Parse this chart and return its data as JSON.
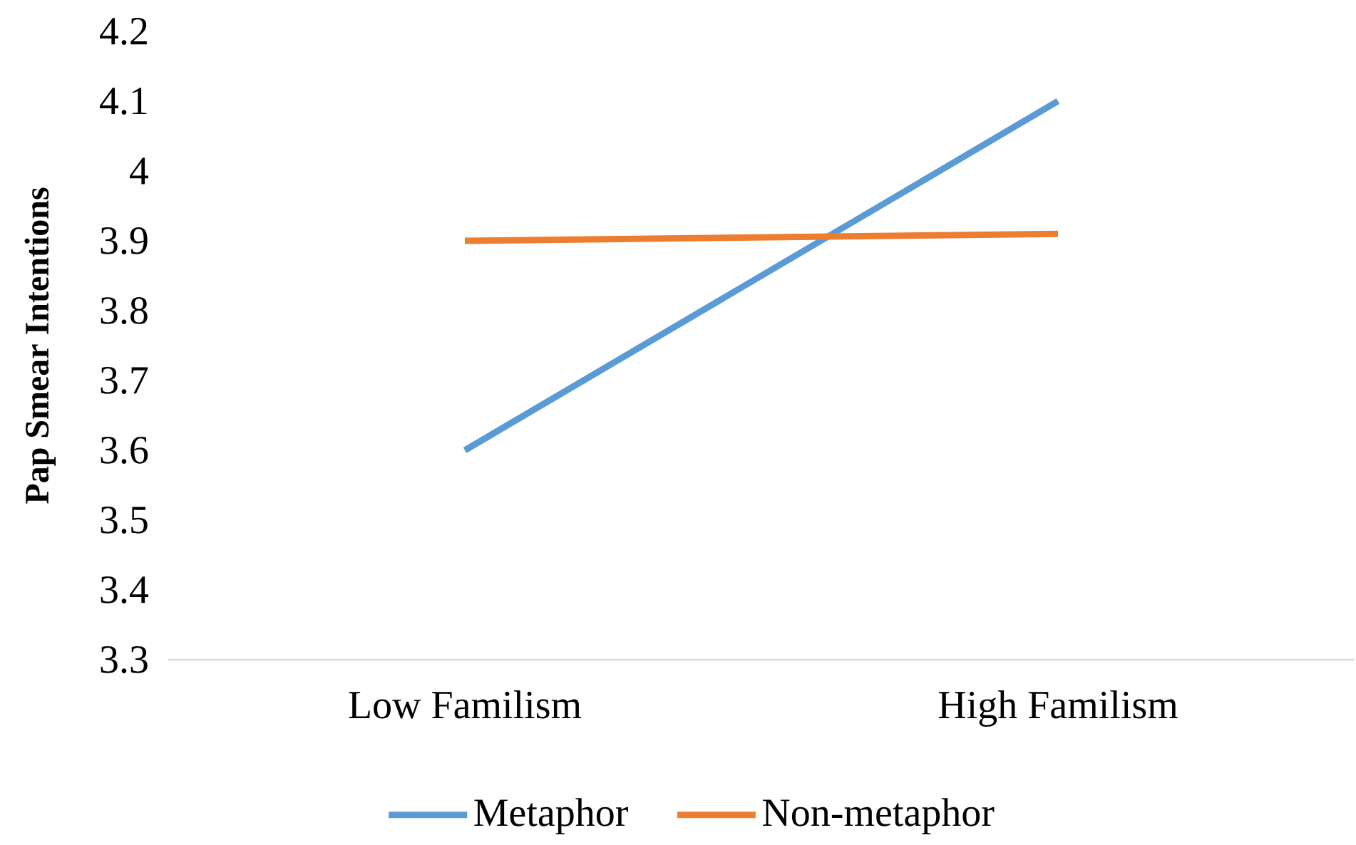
{
  "chart_data": {
    "type": "line",
    "ylabel": "Pap Smear Intentions",
    "categories": [
      "Low Familism",
      "High Familism"
    ],
    "series": [
      {
        "name": "Metaphor",
        "color": "#5b9bd5",
        "values": [
          3.6,
          4.1
        ]
      },
      {
        "name": "Non-metaphor",
        "color": "#ed7d31",
        "values": [
          3.9,
          3.91
        ]
      }
    ],
    "ylim": [
      3.3,
      4.2
    ],
    "yticks": [
      3.3,
      3.4,
      3.5,
      3.6,
      3.7,
      3.8,
      3.9,
      4,
      4.1,
      4.2
    ],
    "grid": false,
    "legend": "bottom",
    "marker": "none",
    "line_style": "solid"
  }
}
